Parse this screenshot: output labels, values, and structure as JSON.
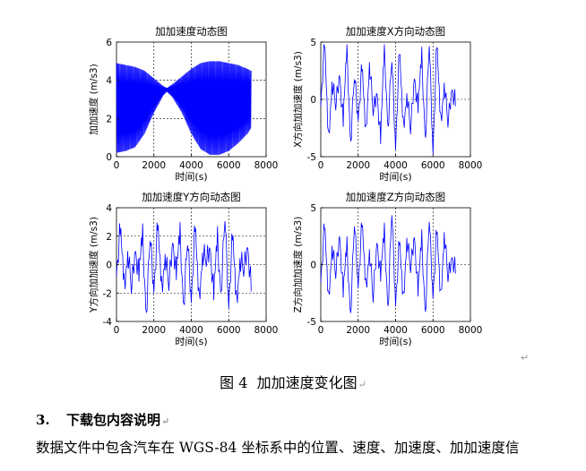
{
  "figure": {
    "caption_label": "图 4",
    "caption_text": "加加速度变化图"
  },
  "section": {
    "number": "3.",
    "title": "下载包内容说明"
  },
  "body_text": "数据文件中包含汽车在 WGS-84 坐标系中的位置、速度、加速度、加加速度信",
  "marks": {
    "paragraph": "↵"
  },
  "chart_data": [
    {
      "type": "line",
      "title": "加加速度动态图",
      "xlabel": "时间(s)",
      "ylabel": "加加速度 (m/s3)",
      "xlim": [
        0,
        8000
      ],
      "ylim": [
        0,
        6
      ],
      "xticks": [
        "0",
        "2000",
        "4000",
        "6000",
        "8000"
      ],
      "yticks": [
        "0",
        "2",
        "4",
        "6"
      ],
      "grid": true,
      "series_color": "#0000ff",
      "series": [
        {
          "name": "magnitude",
          "description": "dense oscillation with amplitude envelope narrowing near t≈2700s (around 3.5) and widest near t≈5000s",
          "x": [
            0,
            500,
            1000,
            1500,
            2000,
            2500,
            2700,
            3000,
            3500,
            4000,
            4500,
            5000,
            5500,
            6000,
            6500,
            7000,
            7200
          ],
          "upper": [
            4.9,
            4.8,
            4.7,
            4.5,
            4.1,
            3.7,
            3.6,
            3.8,
            4.2,
            4.6,
            4.9,
            5.0,
            5.0,
            4.9,
            4.8,
            4.6,
            4.5
          ],
          "lower": [
            0.2,
            0.3,
            0.5,
            1.2,
            2.3,
            3.2,
            3.4,
            3.1,
            2.3,
            1.2,
            0.4,
            0.1,
            0.1,
            0.3,
            0.7,
            1.2,
            1.5
          ]
        }
      ]
    },
    {
      "type": "line",
      "title": "加加速度X方向动态图",
      "xlabel": "时间(s)",
      "ylabel": "X方向加加速度 (m/s3)",
      "xlim": [
        0,
        8000
      ],
      "ylim": [
        -5,
        5
      ],
      "xticks": [
        "0",
        "2000",
        "4000",
        "6000",
        "8000"
      ],
      "yticks": [
        "-5",
        "0",
        "5"
      ],
      "grid": true,
      "series_color": "#0000ff",
      "series": [
        {
          "name": "x",
          "x": [
            0,
            200,
            400,
            600,
            800,
            1000,
            1200,
            1400,
            1600,
            1800,
            2000,
            2200,
            2400,
            2600,
            2800,
            3000,
            3200,
            3400,
            3600,
            3800,
            4000,
            4200,
            4400,
            4600,
            4800,
            5000,
            5200,
            5400,
            5600,
            5800,
            6000,
            6200,
            6400,
            6600,
            6800,
            7000,
            7200
          ],
          "values": [
            0.5,
            4.6,
            -3.8,
            2.1,
            -1.5,
            3.2,
            -2.4,
            4.3,
            -3.1,
            1.2,
            -0.8,
            2.5,
            -3.4,
            3.8,
            -2.0,
            1.6,
            -3.9,
            4.4,
            -1.8,
            2.7,
            -3.3,
            3.9,
            -2.6,
            1.1,
            -3.6,
            2.9,
            -1.2,
            3.5,
            -2.8,
            4.1,
            -3.7,
            4.5,
            -2.2,
            2.0,
            -3.0,
            1.8,
            -0.6
          ]
        }
      ]
    },
    {
      "type": "line",
      "title": "加加速度Y方向动态图",
      "xlabel": "时间(s)",
      "ylabel": "Y方向加加速度 (m/s3)",
      "xlim": [
        0,
        8000
      ],
      "ylim": [
        -4,
        4
      ],
      "xticks": [
        "0",
        "2000",
        "4000",
        "6000",
        "8000"
      ],
      "yticks": [
        "-4",
        "-2",
        "0",
        "2",
        "4"
      ],
      "grid": true,
      "series_color": "#0000ff",
      "series": [
        {
          "name": "y",
          "x": [
            0,
            200,
            400,
            600,
            800,
            1000,
            1200,
            1400,
            1600,
            1800,
            2000,
            2200,
            2400,
            2600,
            2800,
            3000,
            3200,
            3400,
            3600,
            3800,
            4000,
            4200,
            4400,
            4600,
            4800,
            5000,
            5200,
            5400,
            5600,
            5800,
            6000,
            6200,
            6400,
            6600,
            6800,
            7000,
            7200
          ],
          "values": [
            0.3,
            2.1,
            -1.7,
            1.5,
            -2.6,
            2.0,
            -1.2,
            1.8,
            -2.8,
            1.1,
            -0.9,
            2.4,
            -1.9,
            1.3,
            -2.4,
            2.6,
            -1.1,
            1.9,
            -2.2,
            0.8,
            -1.6,
            2.3,
            -2.7,
            1.4,
            -0.7,
            2.2,
            -2.5,
            1.6,
            -1.3,
            2.5,
            -2.0,
            1.7,
            -2.9,
            1.0,
            -1.4,
            2.3,
            -1.9
          ]
        }
      ]
    },
    {
      "type": "line",
      "title": "加加速度Z方向动态图",
      "xlabel": "时间(s)",
      "ylabel": "Z方向加加速度 (m/s3)",
      "xlim": [
        0,
        8000
      ],
      "ylim": [
        -5,
        5
      ],
      "xticks": [
        "0",
        "2000",
        "4000",
        "6000",
        "8000"
      ],
      "yticks": [
        "-5",
        "0",
        "5"
      ],
      "grid": true,
      "series_color": "#0000ff",
      "series": [
        {
          "name": "z",
          "x": [
            0,
            200,
            400,
            600,
            800,
            1000,
            1200,
            1400,
            1600,
            1800,
            2000,
            2200,
            2400,
            2600,
            2800,
            3000,
            3200,
            3400,
            3600,
            3800,
            4000,
            4200,
            4400,
            4600,
            4800,
            5000,
            5200,
            5400,
            5600,
            5800,
            6000,
            6200,
            6400,
            6600,
            6800,
            7000,
            7200
          ],
          "values": [
            -0.5,
            3.1,
            -3.4,
            2.2,
            -1.8,
            3.6,
            -2.9,
            1.4,
            -3.7,
            2.8,
            -1.0,
            3.3,
            -2.3,
            1.9,
            -3.9,
            3.0,
            -1.5,
            2.6,
            -3.1,
            3.8,
            -2.6,
            1.7,
            -3.5,
            2.9,
            -1.3,
            3.5,
            -2.8,
            2.0,
            -3.6,
            3.2,
            -1.9,
            2.7,
            -3.3,
            3.4,
            -2.1,
            1.6,
            -0.8
          ]
        }
      ]
    }
  ]
}
